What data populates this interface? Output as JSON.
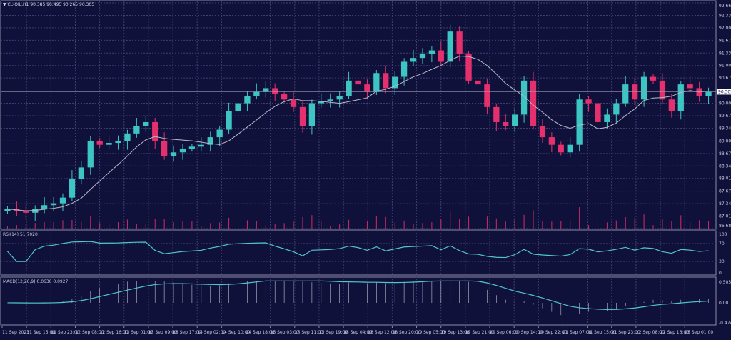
{
  "header": {
    "symbol": "CL-OIL,H1",
    "ohlc": "90.385 90.495 90.265 90.305"
  },
  "colors": {
    "background": "#10113a",
    "grid": "#3c3f70",
    "bull": "#3cc5c2",
    "bear": "#e5306e",
    "ma": "#b8b8c8",
    "rsi": "#4fc6cc",
    "macd": "#4fc6cc",
    "volume": "#d02a66"
  },
  "chart_data": [
    {
      "type": "candlestick",
      "title": "CL-OIL,H1",
      "price_labels": [
        "92.660",
        "92.330",
        "92.000",
        "91.670",
        "91.330",
        "91.000",
        "90.670",
        "90.000",
        "89.670",
        "89.340",
        "89.000",
        "88.670",
        "88.340",
        "88.010",
        "87.670",
        "87.340",
        "87.010",
        "86.680"
      ],
      "current_price": "90.305",
      "ylim": [
        86.68,
        92.66
      ],
      "closes": [
        87.2,
        87.15,
        87.1,
        87.2,
        87.3,
        87.35,
        87.5,
        88.0,
        88.3,
        89.0,
        88.9,
        88.95,
        89.0,
        89.2,
        89.4,
        89.5,
        89.0,
        88.6,
        88.7,
        88.8,
        88.85,
        88.9,
        89.1,
        89.3,
        89.8,
        90.0,
        90.2,
        90.3,
        90.4,
        90.25,
        90.1,
        89.9,
        89.4,
        90.0,
        90.05,
        90.1,
        90.2,
        90.6,
        90.5,
        90.3,
        90.8,
        90.4,
        90.7,
        91.1,
        91.2,
        91.3,
        91.4,
        91.1,
        91.9,
        91.3,
        90.6,
        90.5,
        89.9,
        89.5,
        89.4,
        89.7,
        90.6,
        89.4,
        89.1,
        88.9,
        88.7,
        88.9,
        90.1,
        90.0,
        89.5,
        89.7,
        90.0,
        90.5,
        90.1,
        90.7,
        90.6,
        90.1,
        89.8,
        90.5,
        90.4,
        90.2,
        90.3
      ],
      "ma_period": 20,
      "x_tick_labels": [
        "11 Sep 2023",
        "11 Sep 15:00",
        "11 Sep 23:00",
        "12 Sep 08:00",
        "12 Sep 16:00",
        "13 Sep 01:00",
        "13 Sep 09:00",
        "13 Sep 17:00",
        "14 Sep 02:00",
        "14 Sep 10:00",
        "14 Sep 18:00",
        "15 Sep 03:00",
        "15 Sep 11:00",
        "15 Sep 19:00",
        "18 Sep 04:00",
        "18 Sep 12:00",
        "18 Sep 20:00",
        "19 Sep 05:00",
        "19 Sep 13:00",
        "19 Sep 21:00",
        "20 Sep 06:00",
        "20 Sep 14:00",
        "20 Sep 22:00",
        "21 Sep 07:00",
        "21 Sep 15:00",
        "21 Sep 23:00",
        "22 Sep 08:00",
        "22 Sep 16:00",
        "25 Sep 01:00"
      ],
      "grid": true
    },
    {
      "type": "line",
      "title": "RSI(14) 51.7020",
      "y_tick_labels": [
        "100",
        "70",
        "30",
        "0"
      ],
      "ylim": [
        0,
        100
      ]
    },
    {
      "type": "bar+line",
      "title": "MACD(12,26,9) 0.0636 0.0927",
      "y_tick_labels": [
        "0.5052",
        "0.00",
        "-0.4741"
      ],
      "ylim": [
        -0.4741,
        0.5052
      ]
    }
  ]
}
